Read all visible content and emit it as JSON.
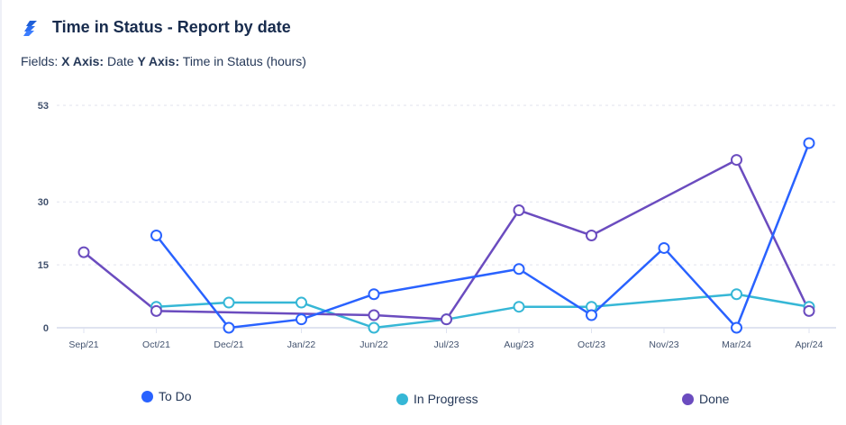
{
  "header": {
    "title": "Time in Status - Report by date",
    "logo_icon": "report-logo-icon"
  },
  "fields": {
    "prefix": "Fields:",
    "x_label": "X Axis:",
    "x_value": "Date",
    "y_label": "Y Axis:",
    "y_value": "Time in Status (hours)"
  },
  "chart_data": {
    "type": "line",
    "title": "",
    "xlabel": "",
    "ylabel": "",
    "categories": [
      "Sep/21",
      "Oct/21",
      "Dec/21",
      "Jan/22",
      "Jun/22",
      "Jul/23",
      "Aug/23",
      "Oct/23",
      "Nov/23",
      "Mar/24",
      "Apr/24"
    ],
    "yticks": [
      0,
      15,
      30,
      53
    ],
    "ylim": [
      0,
      53
    ],
    "grid": true,
    "legend": "bottom",
    "series": [
      {
        "name": "To Do",
        "color": "#2962ff",
        "values": [
          null,
          22,
          0,
          2,
          8,
          null,
          14,
          3,
          19,
          0,
          44
        ]
      },
      {
        "name": "In Progress",
        "color": "#36b7d6",
        "values": [
          null,
          5,
          6,
          6,
          0,
          2,
          5,
          5,
          null,
          8,
          5
        ]
      },
      {
        "name": "Done",
        "color": "#6b4cbf",
        "values": [
          18,
          4,
          null,
          null,
          3,
          2,
          28,
          22,
          null,
          40,
          4
        ]
      }
    ]
  }
}
